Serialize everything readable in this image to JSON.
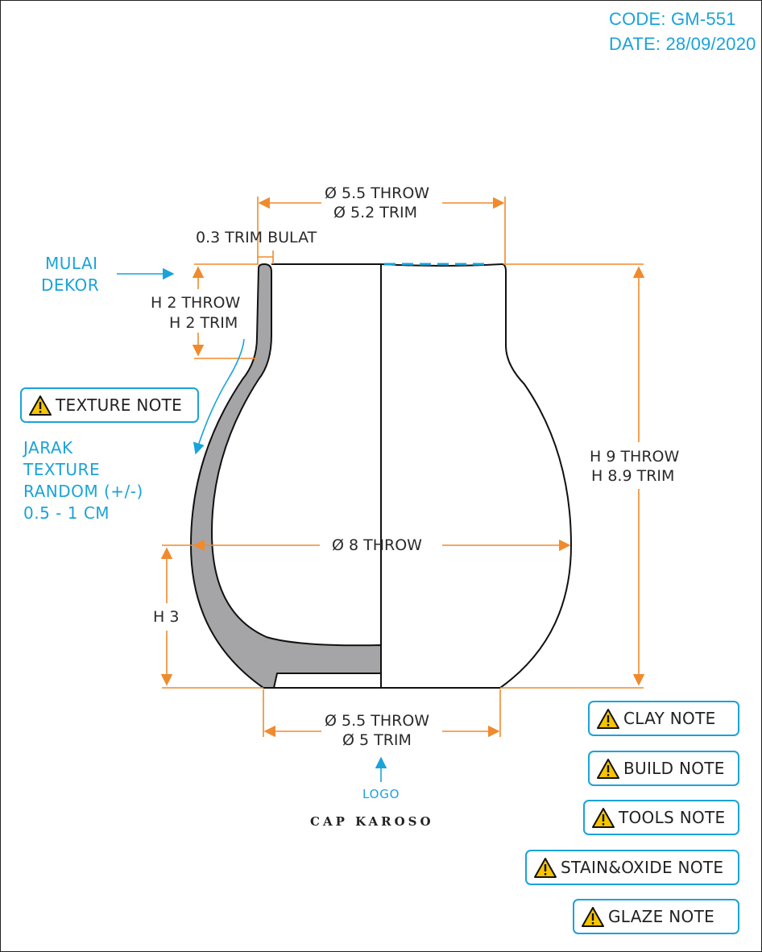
{
  "header": {
    "code": "CODE: GM-551",
    "date": "DATE: 28/09/2020"
  },
  "dimensions": {
    "top_diameter_throw": "Ø 5.5 THROW",
    "top_diameter_trim": "Ø 5.2 TRIM",
    "rim_thickness": "0.3 TRIM BULAT",
    "neck_height_throw": "H 2 THROW",
    "neck_height_trim": "H 2 TRIM",
    "total_height_throw": "H 9 THROW",
    "total_height_trim": "H 8.9 TRIM",
    "belly_diameter": "Ø 8 THROW",
    "lower_height": "H 3",
    "base_diameter_throw": "Ø 5.5 THROW",
    "base_diameter_trim": "Ø 5 TRIM"
  },
  "annotations": {
    "start_decor": [
      "MULAI",
      "DEKOR"
    ],
    "texture_spacing": [
      "JARAK",
      "TEXTURE",
      "RANDOM (+/-)",
      "0.5 - 1 CM"
    ],
    "logo": "LOGO",
    "brand": "CAP KAROSO"
  },
  "notes": {
    "texture": "TEXTURE NOTE",
    "clay": "CLAY NOTE",
    "build": "BUILD NOTE",
    "tools": "TOOLS NOTE",
    "stain_oxide": "STAIN&OXIDE NOTE",
    "glaze": "GLAZE NOTE"
  },
  "icons": {
    "note_icon": "warning-icon"
  },
  "colors": {
    "dimension": "#f08a2c",
    "annotation": "#1aa3d9",
    "wall_section": "#a5a5a8",
    "warning_fill": "#f6c400"
  }
}
